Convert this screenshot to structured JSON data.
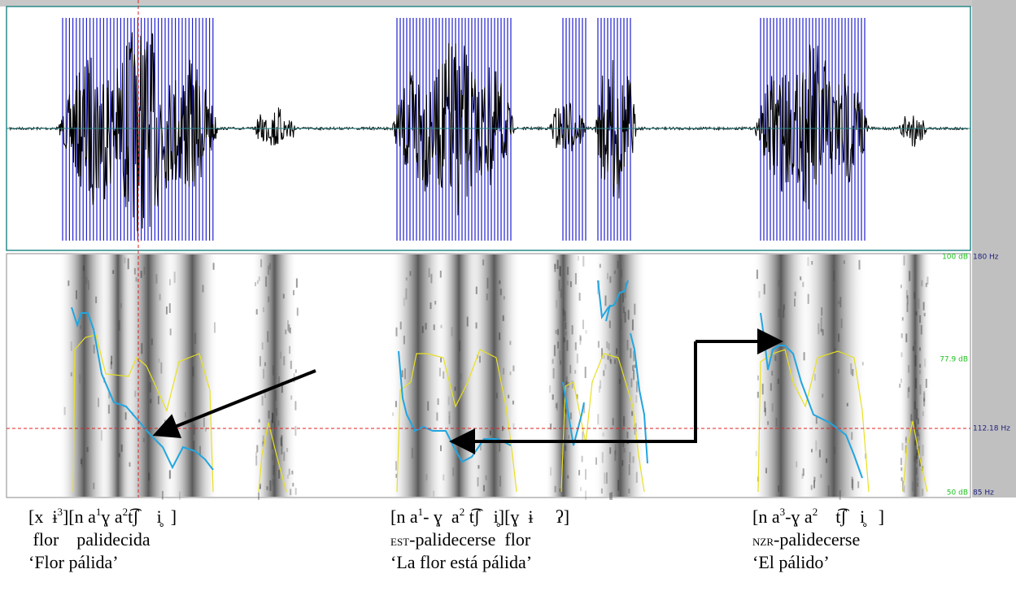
{
  "scale_labels": {
    "db_top": "100 dB",
    "hz_top": "180 Hz",
    "db_mid": "77.9 dB",
    "hz_mid": "112.18 Hz",
    "db_bottom": "50 dB",
    "hz_bottom": "85 Hz"
  },
  "captions": [
    {
      "transcription": [
        "[x  ɨ",
        "3",
        "][n a",
        "1",
        "ɣ a",
        "2",
        "t͡ʃ    i̥  ]"
      ],
      "gloss": [
        " flor    palidecida"
      ],
      "translation": "‘Flor pálida’"
    },
    {
      "transcription": [
        "[n a",
        "1",
        "- ɣ  a",
        "2",
        " t͡ʃ   i̥][ɣ  ɨ     ʔ]"
      ],
      "gloss": [
        "EST",
        "-palidecerse  flor"
      ],
      "translation": "‘La flor está pálida’"
    },
    {
      "transcription": [
        "[n a",
        "3",
        "-ɣ a",
        "2",
        "    t͡ʃ   i̥   ]"
      ],
      "gloss": [
        "NZR",
        "-palidecerse"
      ],
      "translation": "‘El pálido’"
    }
  ]
}
